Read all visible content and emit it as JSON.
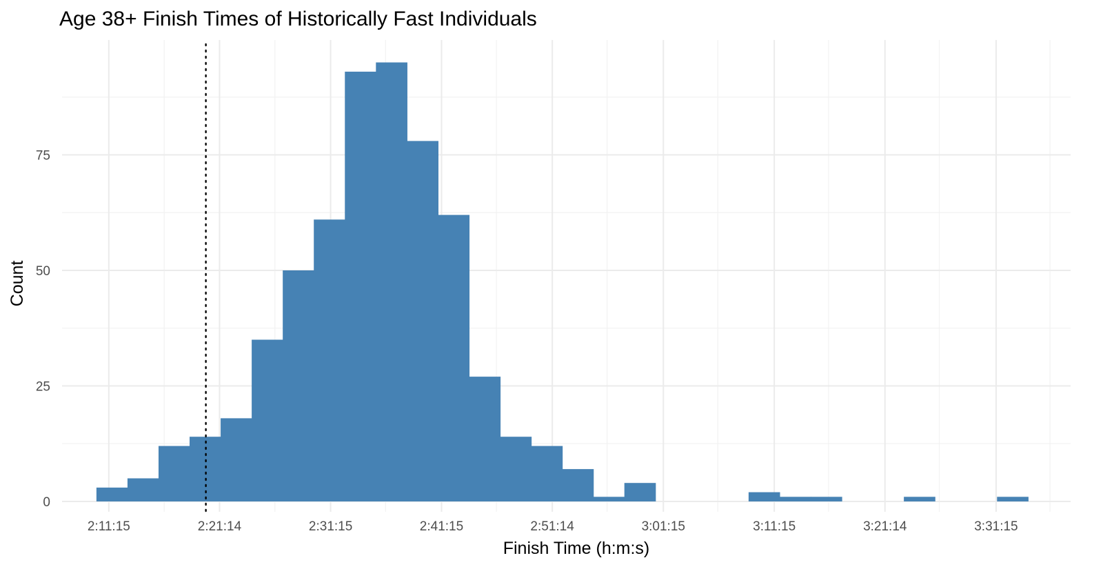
{
  "chart_data": {
    "type": "bar",
    "title": "Age 38+ Finish Times of Historically Fast Individuals",
    "xlabel": "Finish Time (h:m:s)",
    "ylabel": "Count",
    "x_unit": "seconds",
    "x_range_seconds": [
      7622,
      13078
    ],
    "ylim": [
      0,
      99
    ],
    "y_ticks": [
      0,
      25,
      50,
      75
    ],
    "x_ticks": [
      {
        "value": 7875,
        "label": "2:11:15"
      },
      {
        "value": 8474,
        "label": "2:21:14"
      },
      {
        "value": 9075,
        "label": "2:31:15"
      },
      {
        "value": 9675,
        "label": "2:41:15"
      },
      {
        "value": 10274,
        "label": "2:51:14"
      },
      {
        "value": 10875,
        "label": "3:01:15"
      },
      {
        "value": 11475,
        "label": "3:11:15"
      },
      {
        "value": 12074,
        "label": "3:21:14"
      },
      {
        "value": 12675,
        "label": "3:31:15"
      }
    ],
    "bin_width_seconds": 168,
    "bins": [
      {
        "start": 7808,
        "count": 3
      },
      {
        "start": 7976,
        "count": 5
      },
      {
        "start": 8144,
        "count": 12
      },
      {
        "start": 8312,
        "count": 14
      },
      {
        "start": 8480,
        "count": 18
      },
      {
        "start": 8648,
        "count": 35
      },
      {
        "start": 8816,
        "count": 50
      },
      {
        "start": 8984,
        "count": 61
      },
      {
        "start": 9152,
        "count": 93
      },
      {
        "start": 9320,
        "count": 95
      },
      {
        "start": 9488,
        "count": 78
      },
      {
        "start": 9656,
        "count": 62
      },
      {
        "start": 9824,
        "count": 27
      },
      {
        "start": 9992,
        "count": 14
      },
      {
        "start": 10160,
        "count": 12
      },
      {
        "start": 10328,
        "count": 7
      },
      {
        "start": 10496,
        "count": 1
      },
      {
        "start": 10664,
        "count": 4
      },
      {
        "start": 10832,
        "count": 0
      },
      {
        "start": 11000,
        "count": 0
      },
      {
        "start": 11168,
        "count": 0
      },
      {
        "start": 11336,
        "count": 2
      },
      {
        "start": 11504,
        "count": 1
      },
      {
        "start": 11672,
        "count": 1
      },
      {
        "start": 11840,
        "count": 0
      },
      {
        "start": 12008,
        "count": 0
      },
      {
        "start": 12176,
        "count": 1
      },
      {
        "start": 12344,
        "count": 0
      },
      {
        "start": 12512,
        "count": 0
      },
      {
        "start": 12680,
        "count": 1
      }
    ],
    "reference_line": {
      "value": 8400,
      "style": "dotted"
    },
    "bar_color": "#4682b4",
    "grid": true,
    "legend": "none"
  }
}
